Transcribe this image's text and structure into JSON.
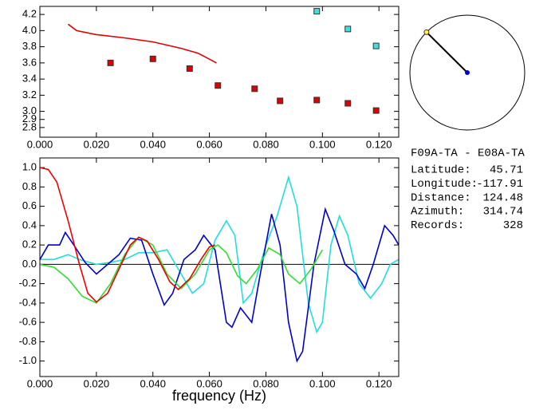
{
  "chart_data": [
    {
      "type": "scatter",
      "xlim": [
        0,
        0.127
      ],
      "ylim": [
        2.68,
        4.3
      ],
      "xticks": [
        {
          "value": 0,
          "label": "0.000"
        },
        {
          "value": 0.02,
          "label": "0.020"
        },
        {
          "value": 0.04,
          "label": "0.040"
        },
        {
          "value": 0.06,
          "label": "0.060"
        },
        {
          "value": 0.08,
          "label": "0.080"
        },
        {
          "value": 0.1,
          "label": "0.100"
        },
        {
          "value": 0.12,
          "label": "0.120"
        }
      ],
      "yticks": [
        2.8,
        3.2,
        3.4,
        3.6,
        3.8,
        4.2,
        {
          "value": 3,
          "label": "3.0"
        },
        {
          "value": 4,
          "label": "4.0"
        },
        {
          "value": 2.9,
          "label": "2.9"
        }
      ],
      "series": [
        {
          "style": "line",
          "color": "#e00000",
          "x": [
            0.01,
            0.013,
            0.02,
            0.03,
            0.04,
            0.05,
            0.056,
            0.0625
          ],
          "values": [
            4.08,
            4.0,
            3.95,
            3.91,
            3.86,
            3.78,
            3.72,
            3.6
          ]
        },
        {
          "style": "square",
          "color": "#e00000",
          "x": [
            0.025,
            0.04,
            0.053,
            0.063,
            0.076,
            0.085,
            0.098,
            0.109,
            0.119
          ],
          "values": [
            3.6,
            3.65,
            3.53,
            3.32,
            3.28,
            3.13,
            3.14,
            3.1,
            3.01
          ]
        },
        {
          "style": "square",
          "color": "#40e0e0",
          "x": [
            0.098,
            0.109,
            0.119
          ],
          "values": [
            4.24,
            4.02,
            3.81
          ]
        }
      ]
    },
    {
      "type": "line",
      "x_label": "frequency (Hz)",
      "xlim": [
        0,
        0.127
      ],
      "ylim": [
        -1.16,
        1.1
      ],
      "zero_line": true,
      "xticks": [
        {
          "value": 0,
          "label": "0.000"
        },
        {
          "value": 0.02,
          "label": "0.020"
        },
        {
          "value": 0.04,
          "label": "0.040"
        },
        {
          "value": 0.06,
          "label": "0.060"
        },
        {
          "value": 0.08,
          "label": "0.080"
        },
        {
          "value": 0.1,
          "label": "0.100"
        },
        {
          "value": 0.12,
          "label": "0.120"
        }
      ],
      "yticks": [
        {
          "value": 1,
          "label": "1.0"
        },
        0.8,
        0.6,
        0.4,
        0.2,
        {
          "value": 0,
          "label": "0.0"
        },
        -0.2,
        -0.4,
        -0.6,
        -0.8,
        {
          "value": -1,
          "label": "-1.0"
        }
      ],
      "series": [
        {
          "color": "#22dddd",
          "x": [
            0,
            0.005,
            0.01,
            0.014,
            0.02,
            0.025,
            0.03,
            0.035,
            0.04,
            0.045,
            0.05,
            0.054,
            0.058,
            0.062,
            0.066,
            0.069,
            0.072,
            0.075,
            0.08,
            0.084,
            0.088,
            0.091,
            0.095,
            0.098,
            0.1,
            0.103,
            0.106,
            0.109,
            0.113,
            0.117,
            0.121,
            0.124,
            0.127
          ],
          "values": [
            0.05,
            0.05,
            0.1,
            0.05,
            0.0,
            0.02,
            0.05,
            0.12,
            0.12,
            0.15,
            -0.1,
            -0.3,
            -0.2,
            0.25,
            0.45,
            0.3,
            -0.4,
            -0.3,
            0.2,
            0.5,
            0.9,
            0.6,
            -0.4,
            -0.7,
            -0.6,
            0.2,
            0.5,
            0.3,
            -0.2,
            -0.35,
            -0.2,
            0.0,
            0.05
          ]
        },
        {
          "color": "#0000cc",
          "x": [
            0,
            0.003,
            0.007,
            0.009,
            0.012,
            0.016,
            0.02,
            0.024,
            0.028,
            0.032,
            0.036,
            0.04,
            0.044,
            0.047,
            0.051,
            0.055,
            0.058,
            0.062,
            0.066,
            0.068,
            0.071,
            0.075,
            0.078,
            0.082,
            0.085,
            0.088,
            0.091,
            0.093,
            0.097,
            0.101,
            0.104,
            0.108,
            0.112,
            0.115,
            0.118,
            0.122,
            0.125,
            0.127
          ],
          "values": [
            0.05,
            0.2,
            0.2,
            0.33,
            0.2,
            0.02,
            -0.1,
            0.0,
            0.1,
            0.27,
            0.25,
            -0.1,
            -0.42,
            -0.3,
            0.05,
            0.15,
            0.3,
            0.15,
            -0.6,
            -0.65,
            -0.45,
            -0.6,
            -0.1,
            0.52,
            0.2,
            -0.6,
            -1.0,
            -0.9,
            0.0,
            0.57,
            0.35,
            0.0,
            -0.1,
            -0.25,
            0.0,
            0.4,
            0.3,
            0.2
          ]
        },
        {
          "color": "#33dd33",
          "x": [
            0,
            0.005,
            0.01,
            0.015,
            0.02,
            0.025,
            0.03,
            0.035,
            0.04,
            0.045,
            0.05,
            0.055,
            0.06,
            0.063,
            0.066,
            0.07,
            0.073,
            0.077,
            0.081,
            0.085,
            0.088,
            0.092,
            0.096,
            0.1
          ],
          "values": [
            0,
            -0.03,
            -0.15,
            -0.33,
            -0.4,
            -0.2,
            0.1,
            0.28,
            0.2,
            -0.1,
            -0.25,
            -0.1,
            0.15,
            0.2,
            0.12,
            -0.12,
            -0.2,
            -0.05,
            0.17,
            0.1,
            -0.1,
            -0.2,
            -0.05,
            0.15
          ]
        },
        {
          "color": "#ee0000",
          "x": [
            0,
            0.003,
            0.006,
            0.01,
            0.014,
            0.017,
            0.02,
            0.024,
            0.028,
            0.032,
            0.035,
            0.038,
            0.042,
            0.046,
            0.049,
            0.053,
            0.057,
            0.06,
            0.062
          ],
          "values": [
            1.0,
            0.98,
            0.85,
            0.45,
            0.0,
            -0.3,
            -0.39,
            -0.3,
            -0.05,
            0.2,
            0.28,
            0.24,
            0.05,
            -0.18,
            -0.26,
            -0.15,
            0.05,
            0.18,
            0.2
          ]
        }
      ]
    }
  ],
  "station": {
    "pair": "F09A-TA - E08A-TA",
    "rows": [
      {
        "label": "Latitude:",
        "value": 45.71
      },
      {
        "label": "Longitude:",
        "value": -117.91
      },
      {
        "label": "Distance:",
        "value": 124.48
      },
      {
        "label": "Azimuth:",
        "value": 314.74
      },
      {
        "label": "Records:",
        "value": 328
      }
    ]
  }
}
